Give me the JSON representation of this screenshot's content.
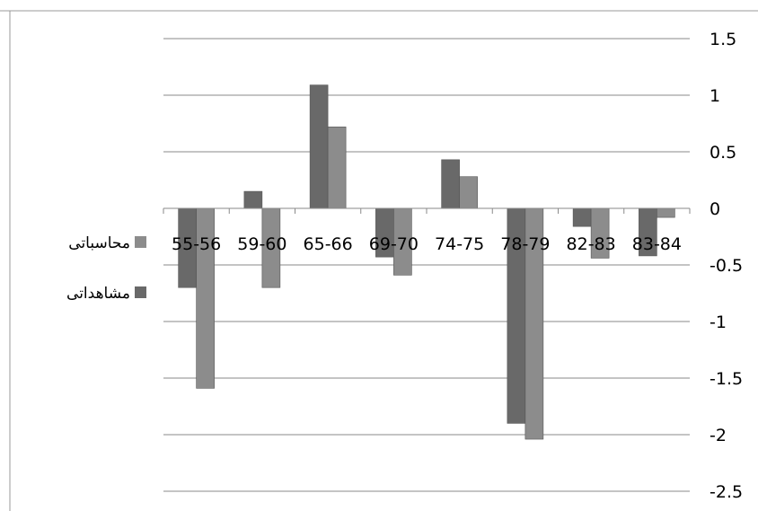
{
  "chart_data": {
    "type": "bar",
    "categories": [
      "83-84",
      "82-83",
      "78-79",
      "74-75",
      "69-70",
      "65-66",
      "59-60",
      "55-56"
    ],
    "series": [
      {
        "name": "مشاهداتی",
        "color": "#696969",
        "values": [
          -0.42,
          -0.16,
          -1.9,
          0.43,
          -0.43,
          1.09,
          0.15,
          -0.7
        ]
      },
      {
        "name": "محاسباتی",
        "color": "#8c8c8c",
        "values": [
          -0.08,
          -0.44,
          -2.04,
          0.28,
          -0.59,
          0.72,
          -0.7,
          -1.59
        ]
      }
    ],
    "ylim": [
      -2.5,
      1.5
    ],
    "yticks": [
      "1.5",
      "1",
      "0.5",
      "0",
      "-0.5",
      "-1",
      "-1.5",
      "-2",
      "-2.5"
    ],
    "ytick_values": [
      1.5,
      1,
      0.5,
      0,
      -0.5,
      -1,
      -1.5,
      -2,
      -2.5
    ],
    "y_axis_side": "right",
    "category_order": "right-to-left",
    "grid": true,
    "legend_position": "left"
  }
}
